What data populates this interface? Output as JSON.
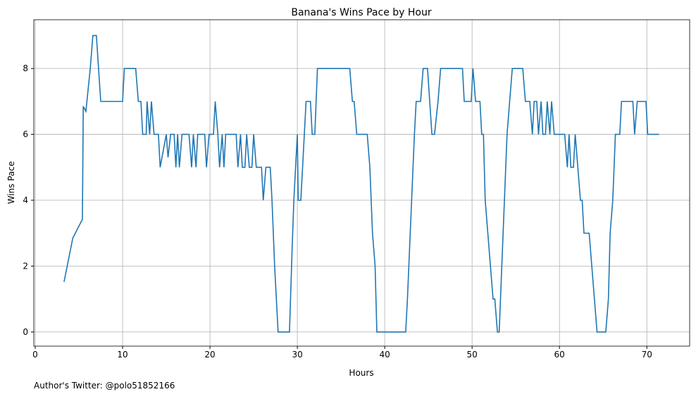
{
  "chart_data": {
    "type": "line",
    "title": "Banana's Wins Pace by Hour",
    "xlabel": "Hours",
    "ylabel": "Wins Pace",
    "annotation": "Author's Twitter: @polo51852166",
    "x": [
      3.3,
      4.3,
      5.4,
      5.5,
      5.8,
      6.3,
      6.6,
      7.0,
      7.5,
      10.0,
      10.2,
      11.5,
      11.8,
      12.1,
      12.3,
      12.7,
      12.8,
      13.1,
      13.3,
      13.6,
      14.1,
      14.3,
      15.0,
      15.2,
      15.5,
      15.9,
      16.1,
      16.3,
      16.5,
      16.8,
      17.6,
      17.9,
      18.1,
      18.4,
      18.6,
      19.4,
      19.6,
      19.9,
      20.4,
      20.6,
      20.9,
      21.1,
      21.4,
      21.6,
      21.8,
      23.0,
      23.2,
      23.5,
      23.7,
      24.0,
      24.2,
      24.5,
      24.8,
      25.0,
      25.3,
      25.9,
      26.1,
      26.4,
      26.9,
      27.1,
      27.4,
      27.8,
      29.1,
      29.4,
      29.6,
      30.0,
      30.1,
      30.4,
      30.8,
      31.0,
      31.5,
      31.7,
      32.0,
      32.3,
      36.0,
      36.3,
      36.5,
      36.8,
      38.0,
      38.3,
      38.6,
      38.9,
      39.1,
      42.4,
      42.6,
      43.4,
      43.6,
      44.1,
      44.4,
      44.9,
      45.4,
      45.7,
      46.1,
      46.4,
      48.9,
      49.1,
      49.9,
      50.1,
      50.4,
      50.9,
      51.1,
      51.3,
      51.5,
      52.1,
      52.4,
      52.6,
      52.9,
      53.1,
      53.4,
      54.0,
      54.6,
      55.8,
      56.1,
      56.6,
      56.9,
      57.1,
      57.4,
      57.6,
      57.9,
      58.1,
      58.4,
      58.6,
      58.9,
      59.1,
      59.4,
      60.6,
      60.9,
      61.1,
      61.3,
      61.6,
      61.8,
      62.4,
      62.6,
      62.8,
      63.4,
      64.0,
      64.3,
      65.3,
      65.6,
      65.8,
      66.1,
      66.4,
      66.9,
      67.1,
      68.4,
      68.6,
      68.9,
      69.9,
      70.1,
      71.4
    ],
    "series": [
      {
        "name": "Wins Pace",
        "color": "#1f77b4",
        "values": [
          1.52,
          2.85,
          3.42,
          6.85,
          6.7,
          8,
          9,
          9,
          7,
          7,
          8,
          8,
          7,
          7,
          6,
          6,
          7,
          6,
          7,
          6,
          6,
          5,
          6,
          5.3,
          6,
          6,
          5,
          6,
          5,
          6,
          6,
          5,
          6,
          5,
          6,
          6,
          5,
          6,
          6,
          7,
          6,
          5,
          6,
          5,
          6,
          6,
          5,
          6,
          5,
          5,
          6,
          5,
          5,
          6,
          5,
          5,
          4,
          5,
          5,
          4,
          2,
          0,
          0,
          2.5,
          4,
          6,
          4,
          4,
          6,
          7,
          7,
          6,
          6,
          8,
          8,
          7,
          7,
          6,
          6,
          5,
          3,
          2,
          0,
          0,
          1,
          6,
          7,
          7,
          8,
          8,
          6,
          6,
          7,
          8,
          8,
          7,
          7,
          8,
          7,
          7,
          6,
          6,
          4,
          2,
          1,
          1,
          0,
          0,
          2,
          6,
          8,
          8,
          7,
          7,
          6,
          7,
          7,
          6,
          7,
          6,
          6,
          7,
          6,
          7,
          6,
          6,
          5,
          6,
          5,
          5,
          6,
          4,
          4,
          3,
          3,
          1,
          0,
          0,
          1,
          3,
          4,
          6,
          6,
          7,
          7,
          6,
          7,
          7,
          6,
          6
        ]
      }
    ],
    "xlim": [
      -0.16,
      74.9
    ],
    "ylim": [
      -0.43,
      9.48
    ],
    "xticks": [
      0,
      10,
      20,
      30,
      40,
      50,
      60,
      70
    ],
    "yticks": [
      0,
      2,
      4,
      6,
      8
    ],
    "grid": true
  }
}
